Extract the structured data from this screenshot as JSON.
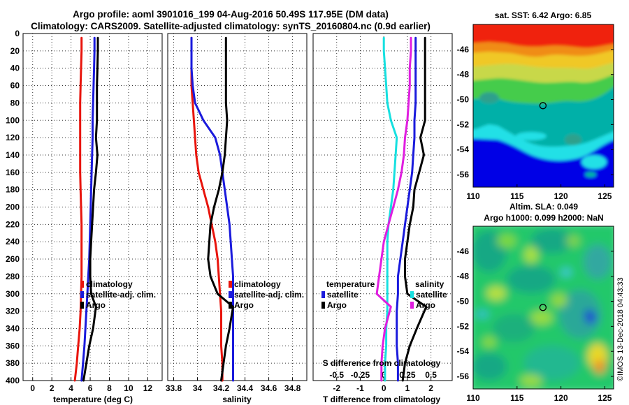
{
  "title": {
    "line1": "Argo profile: aoml 3901016_199 04-Aug-2016 50.49S 117.95E (DM data)",
    "line2": "Climatology: CARS2009. Satellite-adjusted climatology: synTS_20160804.nc (0.9d earlier)"
  },
  "colors": {
    "red": "#e8140c",
    "blue": "#1a1adc",
    "black": "#000000",
    "cyan": "#16e0e0",
    "magenta": "#e01ee0"
  },
  "chart_data": [
    {
      "type": "line",
      "id": "temperature",
      "xlabel": "temperature (deg C)",
      "ylabel": "",
      "xlim": [
        -1,
        13.5
      ],
      "ylim": [
        400,
        0
      ],
      "xticks": [
        0,
        2,
        4,
        6,
        8,
        10,
        12
      ],
      "xtick_labels": [
        "0",
        "2",
        "4",
        "6",
        "8",
        "10",
        "12"
      ],
      "yticks": [
        0,
        20,
        40,
        60,
        80,
        100,
        120,
        140,
        160,
        180,
        200,
        220,
        240,
        260,
        280,
        300,
        320,
        340,
        360,
        380,
        400
      ],
      "ytick_labels": [
        "0",
        "20",
        "40",
        "60",
        "80",
        "100",
        "120",
        "140",
        "160",
        "180",
        "200",
        "220",
        "240",
        "260",
        "280",
        "300",
        "320",
        "340",
        "360",
        "380",
        "400"
      ],
      "legend": {
        "position": "lower-right",
        "entries": [
          "climatology",
          "satellite-adj. clim.",
          "Argo"
        ]
      },
      "series": [
        {
          "name": "climatology",
          "color": "red",
          "x": [
            5.1,
            5.1,
            5.05,
            5.0,
            4.95,
            4.95,
            4.95,
            4.95,
            4.95,
            5.0,
            5.05,
            5.1,
            5.1,
            5.1,
            5.1,
            5.05,
            5.0,
            4.9,
            4.75,
            4.6,
            4.4
          ],
          "y": [
            5,
            20,
            40,
            60,
            80,
            100,
            120,
            140,
            160,
            180,
            200,
            220,
            240,
            260,
            280,
            300,
            320,
            340,
            360,
            380,
            400
          ]
        },
        {
          "name": "satellite-adj. clim.",
          "color": "blue",
          "x": [
            6.45,
            6.45,
            6.4,
            6.35,
            6.3,
            6.25,
            6.25,
            6.2,
            6.15,
            6.1,
            6.05,
            6.0,
            5.95,
            5.9,
            5.8,
            5.7,
            5.6,
            5.5,
            5.4,
            5.25,
            5.1
          ],
          "y": [
            5,
            20,
            40,
            60,
            80,
            100,
            120,
            140,
            160,
            180,
            200,
            220,
            240,
            260,
            280,
            300,
            320,
            340,
            360,
            380,
            400
          ]
        },
        {
          "name": "Argo",
          "color": "black",
          "x": [
            6.8,
            6.8,
            6.75,
            6.7,
            6.7,
            6.7,
            6.6,
            6.75,
            6.6,
            6.4,
            6.3,
            6.2,
            6.1,
            6.0,
            6.0,
            6.1,
            6.6,
            6.3,
            5.9,
            5.6,
            5.3
          ],
          "y": [
            5,
            20,
            40,
            60,
            80,
            100,
            120,
            140,
            160,
            180,
            200,
            220,
            240,
            260,
            280,
            300,
            315,
            340,
            360,
            380,
            400
          ]
        }
      ]
    },
    {
      "type": "line",
      "id": "salinity",
      "xlabel": "salinity",
      "ylabel": "",
      "xlim": [
        33.75,
        34.92
      ],
      "ylim": [
        400,
        0
      ],
      "xticks": [
        33.8,
        34.0,
        34.2,
        34.4,
        34.6,
        34.8
      ],
      "xtick_labels": [
        "33.8",
        "34",
        "34.2",
        "34.4",
        "34.6",
        "34.8"
      ],
      "legend": {
        "position": "lower-right",
        "entries": [
          "climatology",
          "satellite-adj. clim.",
          "Argo"
        ]
      },
      "series": [
        {
          "name": "climatology",
          "color": "red",
          "x": [
            33.95,
            33.95,
            33.95,
            33.95,
            33.96,
            33.97,
            33.98,
            33.99,
            34.01,
            34.05,
            34.09,
            34.12,
            34.15,
            34.17,
            34.18,
            34.19,
            34.2,
            34.2,
            34.2,
            34.21,
            34.21
          ],
          "y": [
            5,
            20,
            40,
            60,
            80,
            100,
            120,
            140,
            160,
            180,
            200,
            220,
            240,
            260,
            280,
            300,
            320,
            340,
            360,
            380,
            400
          ]
        },
        {
          "name": "satellite-adj. clim.",
          "color": "blue",
          "x": [
            33.95,
            33.95,
            33.95,
            33.96,
            33.98,
            34.05,
            34.15,
            34.19,
            34.21,
            34.23,
            34.25,
            34.27,
            34.28,
            34.29,
            34.3,
            34.3,
            34.3,
            34.3,
            34.3,
            34.3,
            34.3
          ],
          "y": [
            5,
            20,
            40,
            60,
            80,
            100,
            120,
            140,
            160,
            180,
            200,
            220,
            240,
            260,
            280,
            300,
            320,
            340,
            360,
            380,
            400
          ]
        },
        {
          "name": "Argo",
          "color": "black",
          "x": [
            34.24,
            34.24,
            34.24,
            34.24,
            34.24,
            34.25,
            34.24,
            34.23,
            34.21,
            34.18,
            34.14,
            34.11,
            34.1,
            34.09,
            34.11,
            34.17,
            34.3,
            34.27,
            34.24,
            34.22,
            34.2
          ],
          "y": [
            5,
            20,
            40,
            60,
            80,
            100,
            120,
            140,
            160,
            180,
            200,
            220,
            240,
            260,
            280,
            300,
            315,
            340,
            360,
            380,
            400
          ]
        }
      ]
    },
    {
      "type": "line",
      "id": "difference",
      "xlabel": "T difference from climatology",
      "xlabel_top": "S difference from climatology",
      "xlim": [
        -3,
        2.9
      ],
      "ylim": [
        400,
        0
      ],
      "xticks": [
        -2,
        -1,
        0,
        1,
        2
      ],
      "xtick_labels": [
        "-2",
        "-1",
        "0",
        "1",
        "2"
      ],
      "x2ticks": [
        -0.5,
        -0.25,
        0,
        0.25,
        0.5
      ],
      "x2tick_labels": [
        "-0.5",
        "-0.25",
        "0",
        "0.25",
        "0.5"
      ],
      "legend": {
        "position": "lower",
        "temperature_title": "temperature",
        "salinity_title": "salinity",
        "temperature_entries": [
          "satellite",
          "Argo"
        ],
        "salinity_entries": [
          "satellite",
          "Argo"
        ]
      },
      "series": [
        {
          "name": "T satellite",
          "color": "blue",
          "x": [
            1.35,
            1.35,
            1.35,
            1.35,
            1.35,
            1.3,
            1.3,
            1.25,
            1.2,
            1.1,
            1.0,
            0.9,
            0.8,
            0.7,
            0.6,
            0.6,
            0.55,
            0.55,
            0.55,
            0.6,
            0.6
          ],
          "y": [
            5,
            20,
            40,
            60,
            80,
            100,
            120,
            140,
            160,
            180,
            200,
            220,
            240,
            260,
            280,
            300,
            320,
            340,
            360,
            380,
            400
          ]
        },
        {
          "name": "T Argo",
          "color": "black",
          "x": [
            1.75,
            1.75,
            1.75,
            1.75,
            1.75,
            1.75,
            1.55,
            1.7,
            1.5,
            1.3,
            1.25,
            1.1,
            1.0,
            0.9,
            0.9,
            1.0,
            1.8,
            1.4,
            1.1,
            0.9,
            0.8
          ],
          "y": [
            5,
            20,
            40,
            60,
            80,
            100,
            120,
            140,
            160,
            180,
            200,
            220,
            240,
            260,
            280,
            300,
            315,
            340,
            360,
            380,
            400
          ]
        },
        {
          "name": "S satellite",
          "color": "cyan",
          "x": [
            0.0,
            0.0,
            0.05,
            0.1,
            0.15,
            0.3,
            0.55,
            0.5,
            0.45,
            0.4,
            0.3,
            0.2,
            0.15,
            0.15,
            0.15,
            0.15,
            0.15,
            0.1,
            0.1,
            0.05,
            0.05
          ],
          "y": [
            5,
            20,
            40,
            60,
            80,
            100,
            120,
            140,
            160,
            180,
            200,
            220,
            240,
            260,
            280,
            300,
            320,
            340,
            360,
            380,
            400
          ]
        },
        {
          "name": "S Argo",
          "color": "magenta",
          "x": [
            1.15,
            1.15,
            1.1,
            1.1,
            1.05,
            1.0,
            0.9,
            0.85,
            0.75,
            0.6,
            0.4,
            0.2,
            0.0,
            -0.1,
            -0.2,
            -0.3,
            0.3,
            0.05,
            -0.05,
            -0.1,
            -0.1
          ],
          "y": [
            5,
            20,
            40,
            60,
            80,
            100,
            120,
            140,
            160,
            180,
            200,
            220,
            240,
            260,
            280,
            300,
            315,
            340,
            360,
            380,
            400
          ]
        }
      ]
    },
    {
      "type": "heatmap",
      "id": "sst-map",
      "title": "sat. SST: 6.42 Argo: 6.85",
      "xlim": [
        110,
        126
      ],
      "ylim": [
        -57,
        -44
      ],
      "xticks": [
        110,
        115,
        120,
        125
      ],
      "xtick_labels": [
        "110",
        "115",
        "120",
        "125"
      ],
      "yticks": [
        -46,
        -48,
        -50,
        -52,
        -54,
        -56
      ],
      "ytick_labels": [
        "-46",
        "-48",
        "-50",
        "-52",
        "-54",
        "-56"
      ],
      "argo_position": [
        117.95,
        -50.49
      ]
    },
    {
      "type": "heatmap",
      "id": "sla-map",
      "title_line1": "Altim. SLA: 0.049",
      "title_line2": "Argo h1000: 0.099 h2000: NaN",
      "xlim": [
        110,
        126
      ],
      "ylim": [
        -57,
        -44
      ],
      "xticks": [
        110,
        115,
        120,
        125
      ],
      "xtick_labels": [
        "110",
        "115",
        "120",
        "125"
      ],
      "yticks": [
        -46,
        -48,
        -50,
        -52,
        -54,
        -56
      ],
      "ytick_labels": [
        "-46",
        "-48",
        "-50",
        "-52",
        "-54",
        "-56"
      ],
      "argo_position": [
        117.95,
        -50.49
      ]
    }
  ],
  "credit": "©IMOS 13-Dec-2018 04:43:33"
}
